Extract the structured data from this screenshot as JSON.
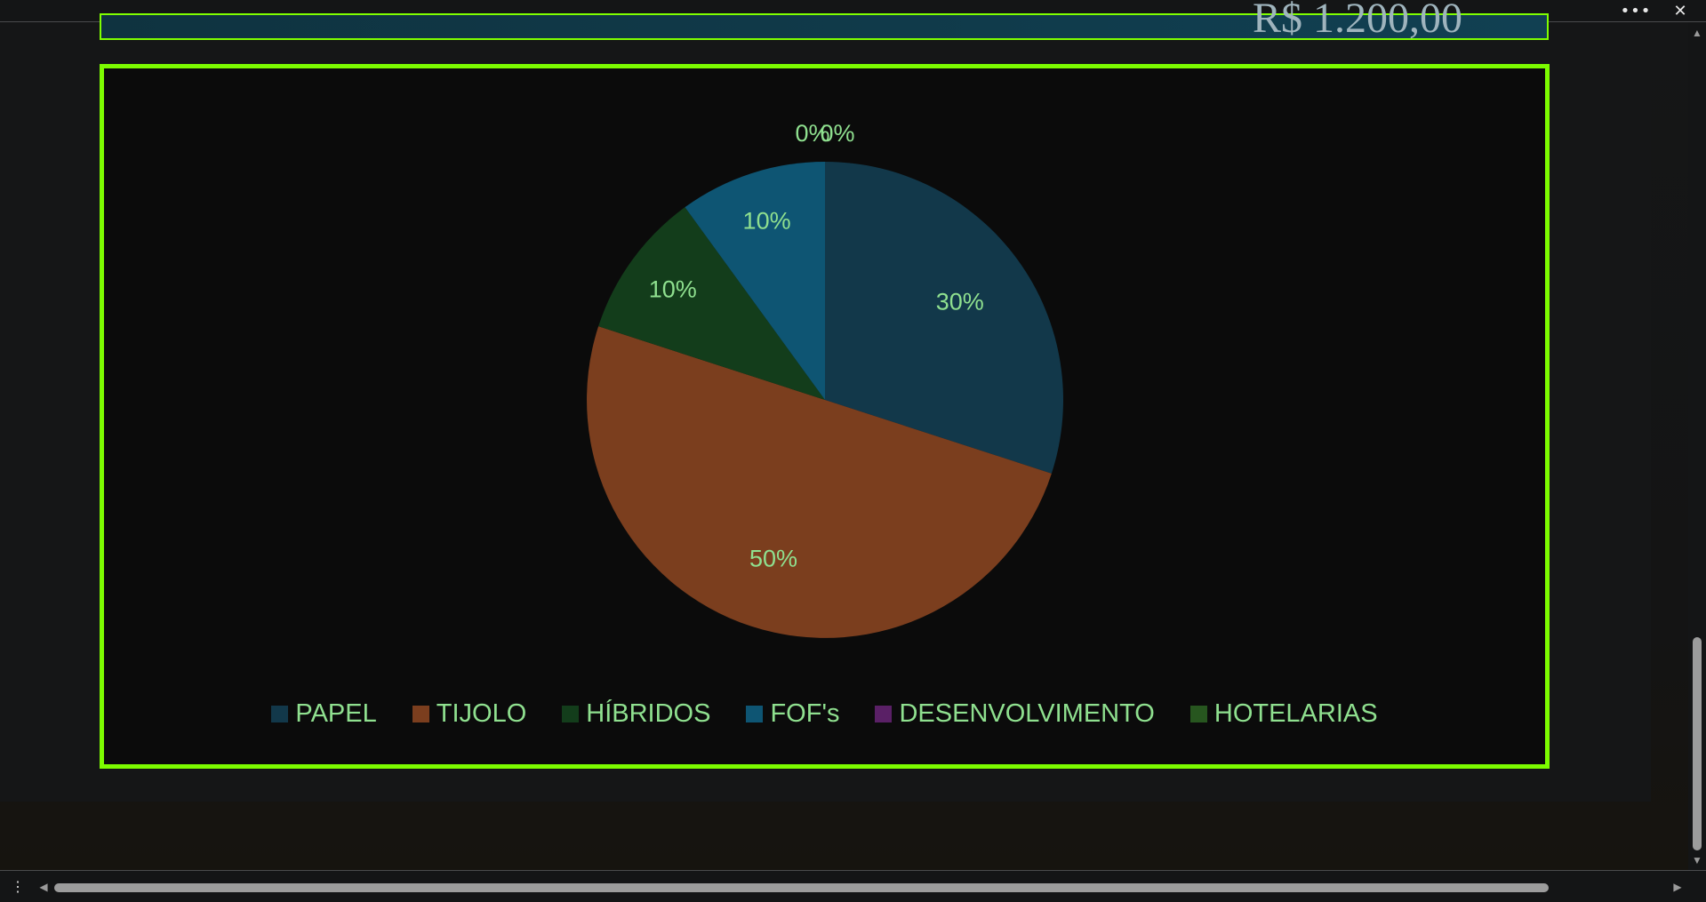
{
  "banner": {
    "value": "R$ 1.200,00"
  },
  "window": {
    "more_icon": "more-horizontal-icon",
    "close_icon": "close-icon"
  },
  "chart_data": {
    "type": "pie",
    "categories": [
      "PAPEL",
      "TIJOLO",
      "HÍBRIDOS",
      "FOF's",
      "DESENVOLVIMENTO",
      "HOTELARIAS"
    ],
    "values": [
      30,
      50,
      10,
      10,
      0,
      0
    ],
    "labels": [
      "30%",
      "50%",
      "10%",
      "10%",
      "0%",
      "0%"
    ],
    "colors": [
      "#12384a",
      "#7b3e1e",
      "#133d1b",
      "#0e5573",
      "#5a2066",
      "#27561f"
    ],
    "label_color": "#8fe08f",
    "legend_position": "bottom"
  }
}
